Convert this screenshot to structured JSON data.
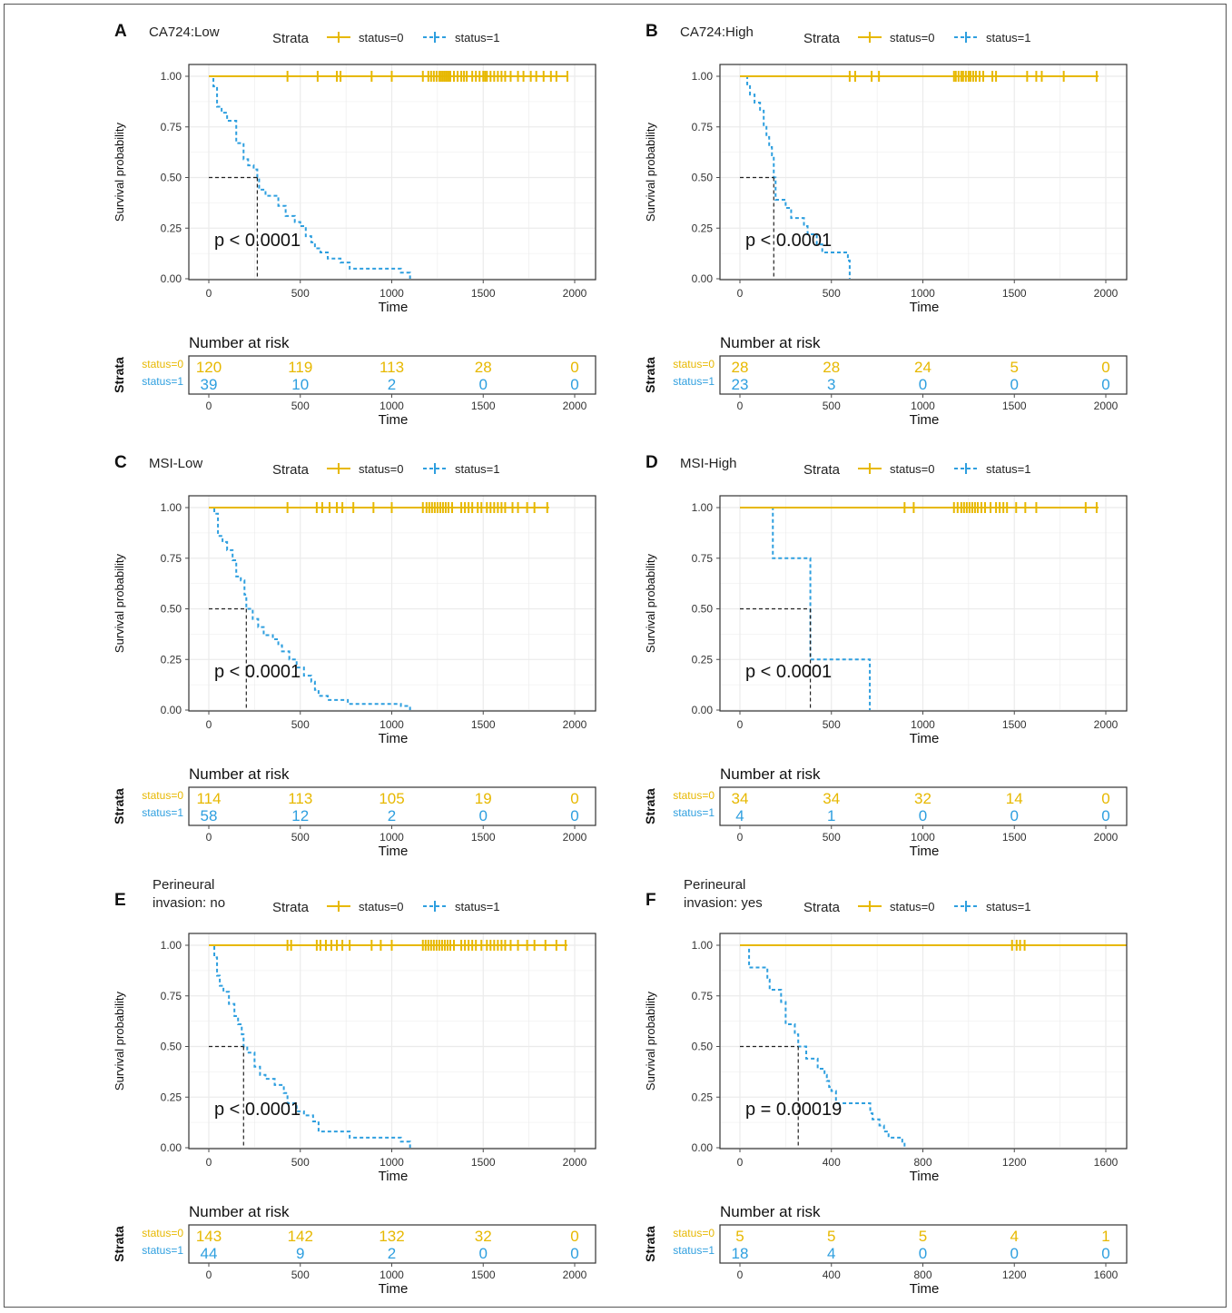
{
  "colors": {
    "status0": "#E7B800",
    "status1": "#2E9FDF",
    "grid": "#ebebeb",
    "axis": "#4d4d4d"
  },
  "common": {
    "legend_title": "Strata",
    "legend_labels": [
      "status=0",
      "status=1"
    ],
    "ylabel": "Survival probability",
    "xlabel": "Time",
    "risk_title": "Number at risk",
    "risk_ylabel": "Strata",
    "risk_row_labels": [
      "status=0",
      "status=1"
    ],
    "y_ticks": [
      "1.00",
      "0.75",
      "0.50",
      "0.25",
      "0.00"
    ]
  },
  "chart_data": [
    {
      "type": "line",
      "panel": "A",
      "title": "CA724:Low",
      "xlim": [
        0,
        2000
      ],
      "ylim": [
        0,
        1
      ],
      "x_ticks": [
        0,
        500,
        1000,
        1500,
        2000
      ],
      "pvalue": "p < 0.0001",
      "median": 265,
      "series": [
        {
          "name": "status=0",
          "steps": [
            [
              0,
              1
            ],
            [
              1960,
              1
            ]
          ],
          "censor": [
            430,
            595,
            700,
            720,
            890,
            1000,
            1170,
            1200,
            1215,
            1230,
            1245,
            1260,
            1270,
            1280,
            1290,
            1300,
            1310,
            1320,
            1340,
            1360,
            1380,
            1395,
            1410,
            1440,
            1460,
            1480,
            1500,
            1510,
            1520,
            1540,
            1560,
            1580,
            1600,
            1620,
            1650,
            1690,
            1720,
            1760,
            1790,
            1830,
            1870,
            1900,
            1960
          ]
        },
        {
          "name": "status=1",
          "steps": [
            [
              0,
              1
            ],
            [
              25,
              0.95
            ],
            [
              45,
              0.85
            ],
            [
              70,
              0.82
            ],
            [
              100,
              0.78
            ],
            [
              150,
              0.67
            ],
            [
              190,
              0.59
            ],
            [
              215,
              0.56
            ],
            [
              245,
              0.54
            ],
            [
              265,
              0.5
            ],
            [
              275,
              0.44
            ],
            [
              310,
              0.41
            ],
            [
              380,
              0.36
            ],
            [
              420,
              0.31
            ],
            [
              470,
              0.28
            ],
            [
              500,
              0.26
            ],
            [
              530,
              0.21
            ],
            [
              560,
              0.18
            ],
            [
              580,
              0.15
            ],
            [
              610,
              0.13
            ],
            [
              650,
              0.1
            ],
            [
              720,
              0.08
            ],
            [
              770,
              0.05
            ],
            [
              1000,
              0.05
            ],
            [
              1050,
              0.03
            ],
            [
              1100,
              0
            ]
          ],
          "censor": []
        }
      ],
      "risk_x": [
        0,
        500,
        1000,
        1500,
        2000
      ],
      "risk": [
        [
          "120",
          "119",
          "113",
          "28",
          "0"
        ],
        [
          "39",
          "10",
          "2",
          "0",
          "0"
        ]
      ]
    },
    {
      "type": "line",
      "panel": "B",
      "title": "CA724:High",
      "xlim": [
        0,
        2000
      ],
      "ylim": [
        0,
        1
      ],
      "x_ticks": [
        0,
        500,
        1000,
        1500,
        2000
      ],
      "pvalue": "p < 0.0001",
      "median": 185,
      "series": [
        {
          "name": "status=0",
          "steps": [
            [
              0,
              1
            ],
            [
              1960,
              1
            ]
          ],
          "censor": [
            600,
            630,
            720,
            760,
            1170,
            1180,
            1195,
            1210,
            1220,
            1235,
            1250,
            1260,
            1275,
            1290,
            1310,
            1330,
            1380,
            1400,
            1570,
            1620,
            1650,
            1770,
            1950
          ]
        },
        {
          "name": "status=1",
          "steps": [
            [
              0,
              1
            ],
            [
              40,
              0.96
            ],
            [
              55,
              0.91
            ],
            [
              80,
              0.87
            ],
            [
              110,
              0.83
            ],
            [
              130,
              0.75
            ],
            [
              145,
              0.7
            ],
            [
              160,
              0.65
            ],
            [
              175,
              0.61
            ],
            [
              185,
              0.5
            ],
            [
              195,
              0.39
            ],
            [
              250,
              0.35
            ],
            [
              280,
              0.3
            ],
            [
              350,
              0.26
            ],
            [
              370,
              0.22
            ],
            [
              420,
              0.17
            ],
            [
              450,
              0.13
            ],
            [
              570,
              0.13
            ],
            [
              590,
              0.09
            ],
            [
              600,
              0
            ]
          ],
          "censor": []
        }
      ],
      "risk_x": [
        0,
        500,
        1000,
        1500,
        2000
      ],
      "risk": [
        [
          "28",
          "28",
          "24",
          "5",
          "0"
        ],
        [
          "23",
          "3",
          "0",
          "0",
          "0"
        ]
      ]
    },
    {
      "type": "line",
      "panel": "C",
      "title": "MSI-Low",
      "xlim": [
        0,
        2000
      ],
      "ylim": [
        0,
        1
      ],
      "x_ticks": [
        0,
        500,
        1000,
        1500,
        2000
      ],
      "pvalue": "p < 0.0001",
      "median": 205,
      "series": [
        {
          "name": "status=0",
          "steps": [
            [
              0,
              1
            ],
            [
              1860,
              1
            ]
          ],
          "censor": [
            430,
            590,
            620,
            660,
            700,
            730,
            790,
            900,
            1000,
            1170,
            1190,
            1205,
            1220,
            1235,
            1250,
            1265,
            1280,
            1295,
            1310,
            1330,
            1380,
            1400,
            1420,
            1440,
            1470,
            1490,
            1520,
            1540,
            1560,
            1580,
            1600,
            1620,
            1660,
            1690,
            1740,
            1780,
            1850
          ]
        },
        {
          "name": "status=1",
          "steps": [
            [
              0,
              1
            ],
            [
              30,
              0.97
            ],
            [
              50,
              0.86
            ],
            [
              75,
              0.83
            ],
            [
              100,
              0.79
            ],
            [
              130,
              0.74
            ],
            [
              150,
              0.66
            ],
            [
              175,
              0.64
            ],
            [
              195,
              0.57
            ],
            [
              205,
              0.5
            ],
            [
              240,
              0.45
            ],
            [
              270,
              0.41
            ],
            [
              300,
              0.37
            ],
            [
              350,
              0.35
            ],
            [
              380,
              0.32
            ],
            [
              400,
              0.29
            ],
            [
              440,
              0.25
            ],
            [
              480,
              0.21
            ],
            [
              520,
              0.17
            ],
            [
              560,
              0.14
            ],
            [
              580,
              0.1
            ],
            [
              600,
              0.07
            ],
            [
              650,
              0.05
            ],
            [
              760,
              0.03
            ],
            [
              1050,
              0.02
            ],
            [
              1100,
              0
            ]
          ],
          "censor": []
        }
      ],
      "risk_x": [
        0,
        500,
        1000,
        1500,
        2000
      ],
      "risk": [
        [
          "114",
          "113",
          "105",
          "19",
          "0"
        ],
        [
          "58",
          "12",
          "2",
          "0",
          "0"
        ]
      ]
    },
    {
      "type": "line",
      "panel": "D",
      "title": "MSI-High",
      "xlim": [
        0,
        2000
      ],
      "ylim": [
        0,
        1
      ],
      "x_ticks": [
        0,
        500,
        1000,
        1500,
        2000
      ],
      "pvalue": "p < 0.0001",
      "median": 385,
      "series": [
        {
          "name": "status=0",
          "steps": [
            [
              0,
              1
            ],
            [
              1960,
              1
            ]
          ],
          "censor": [
            900,
            950,
            1170,
            1190,
            1210,
            1225,
            1240,
            1255,
            1270,
            1285,
            1300,
            1320,
            1340,
            1370,
            1400,
            1420,
            1440,
            1460,
            1510,
            1560,
            1620,
            1890,
            1950
          ]
        },
        {
          "name": "status=1",
          "steps": [
            [
              0,
              1
            ],
            [
              180,
              0.75
            ],
            [
              385,
              0.25
            ],
            [
              710,
              0
            ]
          ],
          "censor": []
        }
      ],
      "risk_x": [
        0,
        500,
        1000,
        1500,
        2000
      ],
      "risk": [
        [
          "34",
          "34",
          "32",
          "14",
          "0"
        ],
        [
          "4",
          "1",
          "0",
          "0",
          "0"
        ]
      ]
    },
    {
      "type": "line",
      "panel": "E",
      "title": "Perineural\ninvasion: no",
      "xlim": [
        0,
        2000
      ],
      "ylim": [
        0,
        1
      ],
      "x_ticks": [
        0,
        500,
        1000,
        1500,
        2000
      ],
      "pvalue": "p < 0.0001",
      "median": 190,
      "series": [
        {
          "name": "status=0",
          "steps": [
            [
              0,
              1
            ],
            [
              1960,
              1
            ]
          ],
          "censor": [
            430,
            450,
            590,
            610,
            640,
            670,
            700,
            730,
            770,
            890,
            940,
            1000,
            1170,
            1185,
            1200,
            1215,
            1230,
            1245,
            1260,
            1275,
            1290,
            1305,
            1320,
            1340,
            1380,
            1400,
            1420,
            1440,
            1460,
            1490,
            1520,
            1540,
            1560,
            1580,
            1600,
            1620,
            1650,
            1690,
            1740,
            1780,
            1840,
            1900,
            1950
          ]
        },
        {
          "name": "status=1",
          "steps": [
            [
              0,
              1
            ],
            [
              30,
              0.94
            ],
            [
              45,
              0.85
            ],
            [
              60,
              0.8
            ],
            [
              80,
              0.77
            ],
            [
              110,
              0.71
            ],
            [
              140,
              0.65
            ],
            [
              160,
              0.61
            ],
            [
              180,
              0.56
            ],
            [
              190,
              0.5
            ],
            [
              210,
              0.47
            ],
            [
              250,
              0.4
            ],
            [
              280,
              0.36
            ],
            [
              310,
              0.34
            ],
            [
              360,
              0.31
            ],
            [
              410,
              0.27
            ],
            [
              430,
              0.22
            ],
            [
              480,
              0.18
            ],
            [
              520,
              0.16
            ],
            [
              570,
              0.13
            ],
            [
              600,
              0.08
            ],
            [
              770,
              0.05
            ],
            [
              1050,
              0.03
            ],
            [
              1100,
              0
            ]
          ],
          "censor": []
        }
      ],
      "risk_x": [
        0,
        500,
        1000,
        1500,
        2000
      ],
      "risk": [
        [
          "143",
          "142",
          "132",
          "32",
          "0"
        ],
        [
          "44",
          "9",
          "2",
          "0",
          "0"
        ]
      ]
    },
    {
      "type": "line",
      "panel": "F",
      "title": "Perineural\ninvasion: yes",
      "xlim": [
        0,
        1600
      ],
      "ylim": [
        0,
        1
      ],
      "x_ticks": [
        0,
        400,
        800,
        1200,
        1600
      ],
      "pvalue": "p = 0.00019",
      "median": 255,
      "series": [
        {
          "name": "status=0",
          "steps": [
            [
              0,
              1
            ],
            [
              1700,
              1
            ]
          ],
          "censor": [
            1190,
            1210,
            1225,
            1245
          ]
        },
        {
          "name": "status=1",
          "steps": [
            [
              0,
              1
            ],
            [
              40,
              0.89
            ],
            [
              120,
              0.83
            ],
            [
              130,
              0.78
            ],
            [
              180,
              0.72
            ],
            [
              200,
              0.61
            ],
            [
              240,
              0.56
            ],
            [
              255,
              0.5
            ],
            [
              290,
              0.44
            ],
            [
              340,
              0.39
            ],
            [
              370,
              0.36
            ],
            [
              380,
              0.33
            ],
            [
              390,
              0.3
            ],
            [
              400,
              0.28
            ],
            [
              420,
              0.22
            ],
            [
              570,
              0.17
            ],
            [
              580,
              0.14
            ],
            [
              610,
              0.11
            ],
            [
              630,
              0.08
            ],
            [
              650,
              0.05
            ],
            [
              710,
              0.03
            ],
            [
              720,
              0
            ]
          ],
          "censor": []
        }
      ],
      "risk_x": [
        0,
        400,
        800,
        1200,
        1600
      ],
      "risk": [
        [
          "5",
          "5",
          "5",
          "4",
          "1"
        ],
        [
          "18",
          "4",
          "0",
          "0",
          "0"
        ]
      ]
    }
  ]
}
